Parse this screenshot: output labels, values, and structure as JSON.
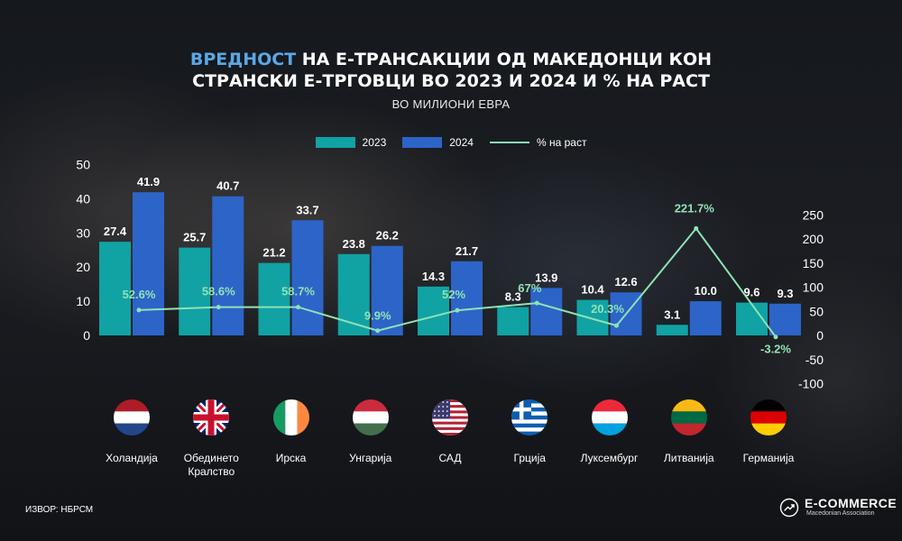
{
  "title": {
    "accent": "ВРЕДНОСТ",
    "line1_rest": " НА Е-ТРАНСАКЦИИ  ОД МАКЕДОНЦИ КОН",
    "line2": "СТРАНСКИ Е-ТРГОВЦИ ВО 2023 И 2024 И % НА РАСТ"
  },
  "subtitle": "ВО МИЛИОНИ ЕВРА",
  "legend": [
    {
      "label": "2023",
      "kind": "bar",
      "color": "#11a2a4"
    },
    {
      "label": "2024",
      "kind": "bar",
      "color": "#2d64c8"
    },
    {
      "label": "% на раст",
      "kind": "line",
      "color": "#8fe3b4"
    }
  ],
  "chart_data": {
    "type": "bar",
    "categories": [
      "Холандија",
      "Обединето Кралство",
      "Ирска",
      "Унгарија",
      "САД",
      "Грција",
      "Луксембург",
      "Литванија",
      "Германија"
    ],
    "category_lines": [
      [
        "Холандија"
      ],
      [
        "Обединето",
        "Кралство"
      ],
      [
        "Ирска"
      ],
      [
        "Унгарија"
      ],
      [
        "САД"
      ],
      [
        "Грција"
      ],
      [
        "Луксембург"
      ],
      [
        "Литванија"
      ],
      [
        "Германија"
      ]
    ],
    "series": [
      {
        "name": "2023",
        "type": "bar",
        "axis": "left",
        "values": [
          27.4,
          25.7,
          21.2,
          23.8,
          14.3,
          8.3,
          10.4,
          3.1,
          9.6
        ],
        "labels": [
          "27.4",
          "25.7",
          "21.2",
          "23.8",
          "14.3",
          "8.3",
          "10.4",
          "3.1",
          "9.6"
        ],
        "color": "#11a2a4"
      },
      {
        "name": "2024",
        "type": "bar",
        "axis": "left",
        "values": [
          41.9,
          40.7,
          33.7,
          26.2,
          21.7,
          13.9,
          12.6,
          10.0,
          9.3
        ],
        "labels": [
          "41.9",
          "40.7",
          "33.7",
          "26.2",
          "21.7",
          "13.9",
          "12.6",
          "10.0",
          "9.3"
        ],
        "color": "#2d64c8"
      },
      {
        "name": "% на раст",
        "type": "line",
        "axis": "right",
        "values": [
          52.6,
          58.6,
          58.7,
          9.9,
          52,
          67,
          20.3,
          221.7,
          -3.2
        ],
        "labels": [
          "52.6%",
          "58.6%",
          "58.7%",
          "9.9%",
          "52%",
          "67%",
          "20.3%",
          "221.7%",
          "-3.2%"
        ],
        "color": "#8fe3b4"
      }
    ],
    "y_left": {
      "ylim": [
        0,
        50
      ],
      "ticks": [
        "0",
        "10",
        "20",
        "30",
        "40",
        "50"
      ]
    },
    "y_right": {
      "ylim": [
        -100,
        250
      ],
      "ticks": [
        "-100",
        "-50",
        "0",
        "50",
        "100",
        "150",
        "200",
        "250"
      ]
    },
    "grid": false,
    "legend_position": "top-center"
  },
  "flags": [
    "netherlands-flag",
    "united-kingdom-flag",
    "ireland-flag",
    "hungary-flag",
    "usa-flag",
    "greece-flag",
    "luxembourg-flag",
    "lithuania-flag",
    "germany-flag"
  ],
  "footer": {
    "source": "ИЗВОР: НБРСМ",
    "brand_name": "E-COMMERCE",
    "brand_sub": "Macedonian Association"
  }
}
